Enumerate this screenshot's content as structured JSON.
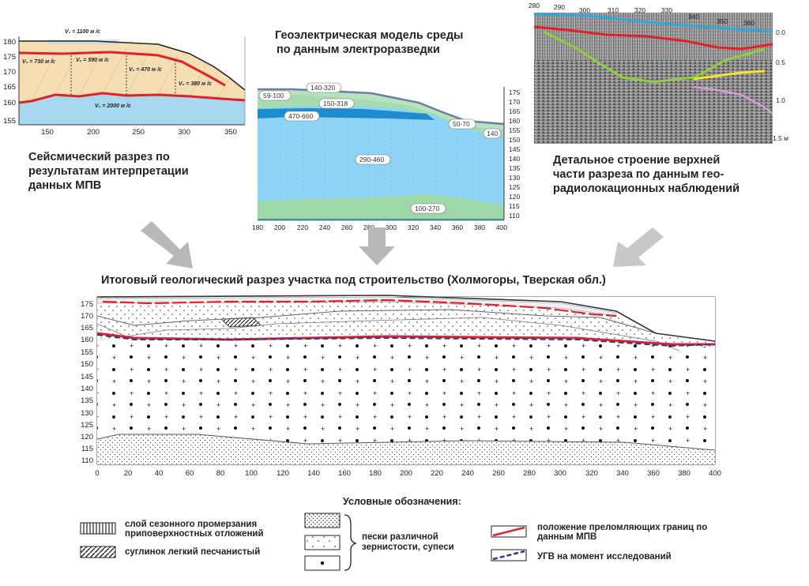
{
  "seismic": {
    "caption": [
      "Сейсмический разрез по",
      "результатам интерпретации",
      "данных МПВ"
    ],
    "y_ticks": [
      "180",
      "175",
      "170",
      "165",
      "160",
      "155"
    ],
    "x_ticks": [
      "150",
      "200",
      "250",
      "300",
      "350"
    ],
    "velocities": [
      "V₁ = 1100 м /с",
      "V₂ = 730 м /с",
      "V₂ = 590 м /с",
      "V₂ = 470 м /с",
      "V₂ = 380 м /с",
      "V₂ = 2000 м /с"
    ]
  },
  "geoelectric": {
    "title": [
      "Геоэлектрическая модель среды",
      "по данным электроразведки"
    ],
    "y_ticks": [
      "175",
      "170",
      "165",
      "160",
      "155",
      "150",
      "145",
      "140",
      "135",
      "130",
      "125",
      "120",
      "115",
      "110"
    ],
    "x_ticks": [
      "180",
      "200",
      "220",
      "240",
      "260",
      "280",
      "300",
      "320",
      "340",
      "360",
      "380",
      "400"
    ],
    "zones": [
      "140-320",
      "59-100",
      "150-318",
      "470-660",
      "50-70",
      "140",
      "290-460",
      "100-270"
    ]
  },
  "gpr": {
    "caption": [
      "Детальное строение верхней",
      "части разреза по данным гео-",
      "радиолокационных наблюдений"
    ],
    "x_ticks": [
      "280",
      "290",
      "300",
      "310",
      "320",
      "330",
      "340",
      "350",
      "360"
    ],
    "depth_ticks": [
      "0.0",
      "0.5",
      "1.0",
      "1.5 м"
    ]
  },
  "final_section": {
    "title": "Итоговый геологический разрез  участка под строительство (Холмогоры, Тверская обл.)",
    "y_ticks": [
      "175",
      "170",
      "165",
      "160",
      "155",
      "150",
      "145",
      "140",
      "135",
      "130",
      "125",
      "120",
      "115",
      "110"
    ],
    "x_ticks": [
      "0",
      "20",
      "40",
      "60",
      "80",
      "100",
      "120",
      "140",
      "160",
      "180",
      "200",
      "220",
      "240",
      "260",
      "280",
      "300",
      "320",
      "340",
      "360",
      "380",
      "400"
    ]
  },
  "legend": {
    "title": "Условные обозначения:",
    "frost": "слой сезонного промерзания приповерхностных отложений",
    "loam": "суглинок легкий песчанистый",
    "sands": "пески различной зернистости, супеси",
    "refraction": "положение преломляющих границ по данным МПВ",
    "groundwater": "УГВ на момент исследований"
  },
  "colors": {
    "red_boundary": "#e0202a",
    "blue_gwl": "#2a3a9a",
    "arrow_gray": "#b8b8b8",
    "seis_tan": "#f5deb3",
    "seis_blue": "#a8d8f0",
    "geo_blue": "#8dd3f5",
    "geo_dark": "#1f8ccf",
    "geo_green": "#9fd8a8"
  }
}
